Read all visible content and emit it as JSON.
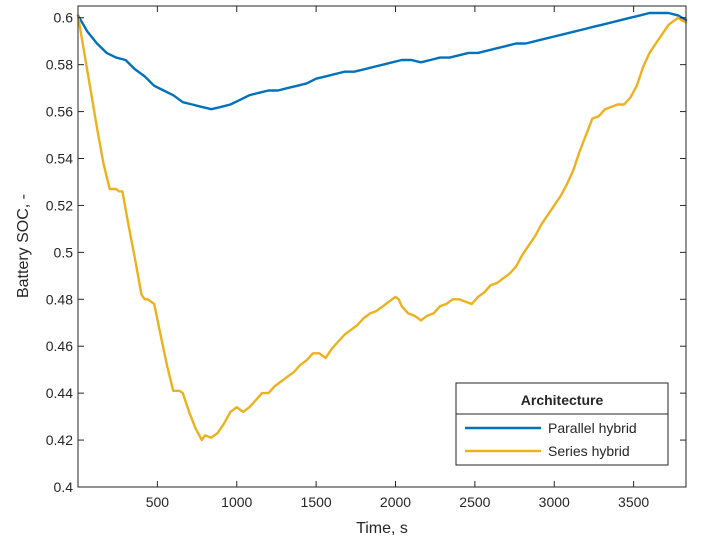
{
  "chart_data": {
    "type": "line",
    "title": "",
    "xlabel": "Time, s",
    "ylabel": "Battery SOC, -",
    "xlim": [
      0,
      3830
    ],
    "ylim": [
      0.4,
      0.605
    ],
    "xticks": [
      500,
      1000,
      1500,
      2000,
      2500,
      3000,
      3500
    ],
    "yticks": [
      0.4,
      0.42,
      0.44,
      0.46,
      0.48,
      0.5,
      0.52,
      0.54,
      0.56,
      0.58,
      0.6
    ],
    "grid": false,
    "legend": {
      "title": "Architecture",
      "placement": "bottom-right",
      "entries": [
        "Parallel hybrid",
        "Series hybrid"
      ]
    },
    "series": [
      {
        "name": "Parallel hybrid",
        "color": "#0072BD",
        "x": [
          0,
          60,
          120,
          180,
          240,
          300,
          360,
          420,
          480,
          540,
          600,
          660,
          720,
          780,
          840,
          900,
          960,
          1020,
          1080,
          1140,
          1200,
          1260,
          1320,
          1380,
          1440,
          1500,
          1560,
          1620,
          1680,
          1740,
          1800,
          1860,
          1920,
          1980,
          2040,
          2100,
          2160,
          2220,
          2280,
          2340,
          2400,
          2460,
          2520,
          2580,
          2640,
          2700,
          2760,
          2820,
          2880,
          2940,
          3000,
          3060,
          3120,
          3180,
          3240,
          3300,
          3360,
          3420,
          3480,
          3540,
          3600,
          3660,
          3720,
          3780,
          3830
        ],
        "y": [
          0.601,
          0.594,
          0.589,
          0.585,
          0.583,
          0.582,
          0.578,
          0.575,
          0.571,
          0.569,
          0.567,
          0.564,
          0.563,
          0.562,
          0.561,
          0.562,
          0.563,
          0.565,
          0.567,
          0.568,
          0.569,
          0.569,
          0.57,
          0.571,
          0.572,
          0.574,
          0.575,
          0.576,
          0.577,
          0.577,
          0.578,
          0.579,
          0.58,
          0.581,
          0.582,
          0.582,
          0.581,
          0.582,
          0.583,
          0.583,
          0.584,
          0.585,
          0.585,
          0.586,
          0.587,
          0.588,
          0.589,
          0.589,
          0.59,
          0.591,
          0.592,
          0.593,
          0.594,
          0.595,
          0.596,
          0.597,
          0.598,
          0.599,
          0.6,
          0.601,
          0.602,
          0.602,
          0.602,
          0.601,
          0.599
        ]
      },
      {
        "name": "Series hybrid",
        "color": "#EDB120",
        "x": [
          0,
          40,
          80,
          120,
          160,
          200,
          240,
          260,
          280,
          320,
          360,
          400,
          420,
          440,
          480,
          520,
          560,
          600,
          620,
          640,
          660,
          700,
          740,
          780,
          800,
          840,
          880,
          920,
          960,
          1000,
          1040,
          1080,
          1120,
          1160,
          1200,
          1240,
          1280,
          1320,
          1360,
          1400,
          1440,
          1480,
          1520,
          1560,
          1600,
          1640,
          1680,
          1720,
          1760,
          1800,
          1840,
          1880,
          1920,
          1960,
          2000,
          2020,
          2040,
          2080,
          2120,
          2160,
          2200,
          2240,
          2280,
          2320,
          2360,
          2400,
          2440,
          2480,
          2520,
          2560,
          2600,
          2640,
          2680,
          2720,
          2760,
          2800,
          2840,
          2880,
          2920,
          2960,
          3000,
          3040,
          3080,
          3120,
          3160,
          3200,
          3240,
          3280,
          3320,
          3360,
          3400,
          3440,
          3480,
          3520,
          3560,
          3600,
          3640,
          3680,
          3720,
          3760,
          3780,
          3800,
          3830
        ],
        "y": [
          0.601,
          0.585,
          0.569,
          0.553,
          0.538,
          0.527,
          0.527,
          0.526,
          0.526,
          0.511,
          0.497,
          0.482,
          0.48,
          0.48,
          0.478,
          0.465,
          0.452,
          0.441,
          0.441,
          0.441,
          0.44,
          0.432,
          0.425,
          0.42,
          0.422,
          0.421,
          0.423,
          0.427,
          0.432,
          0.434,
          0.432,
          0.434,
          0.437,
          0.44,
          0.44,
          0.443,
          0.445,
          0.447,
          0.449,
          0.452,
          0.454,
          0.457,
          0.457,
          0.455,
          0.459,
          0.462,
          0.465,
          0.467,
          0.469,
          0.472,
          0.474,
          0.475,
          0.477,
          0.479,
          0.481,
          0.48,
          0.477,
          0.474,
          0.473,
          0.471,
          0.473,
          0.474,
          0.477,
          0.478,
          0.48,
          0.48,
          0.479,
          0.478,
          0.481,
          0.483,
          0.486,
          0.487,
          0.489,
          0.491,
          0.494,
          0.499,
          0.503,
          0.507,
          0.512,
          0.516,
          0.52,
          0.524,
          0.529,
          0.535,
          0.543,
          0.55,
          0.557,
          0.558,
          0.561,
          0.562,
          0.563,
          0.563,
          0.566,
          0.571,
          0.579,
          0.585,
          0.589,
          0.593,
          0.597,
          0.599,
          0.6,
          0.599,
          0.598
        ]
      }
    ]
  }
}
